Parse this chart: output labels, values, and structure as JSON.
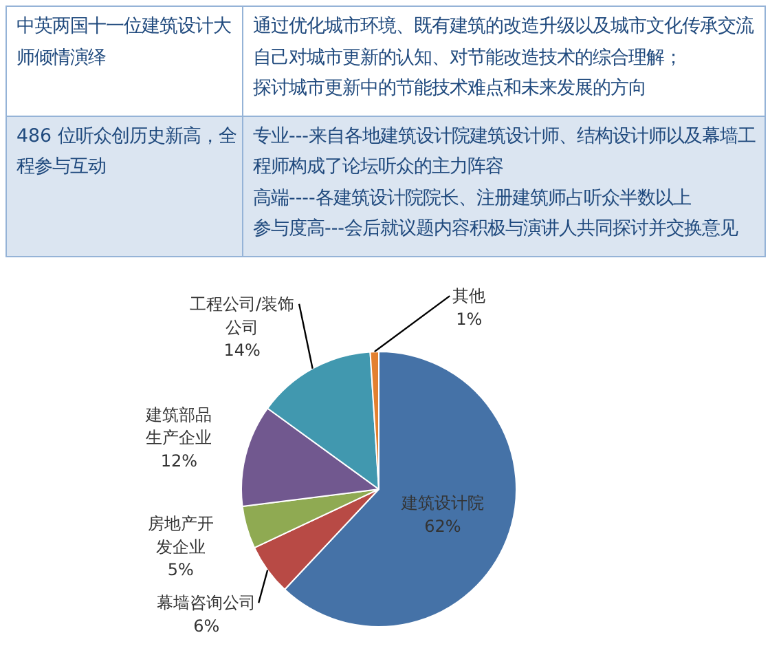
{
  "chart_data": {
    "type": "pie",
    "categories": [
      "建筑设计院",
      "幕墙咨询公司",
      "房地产开发企业",
      "建筑部品生产企业",
      "工程公司/装饰公司",
      "其他"
    ],
    "values": [
      62,
      6,
      5,
      12,
      14,
      1
    ],
    "colors": [
      "#4572a7",
      "#b84a45",
      "#8faa52",
      "#71588f",
      "#4198af",
      "#e3802f"
    ],
    "value_labels": [
      "62%",
      "6%",
      "5%",
      "12%",
      "14%",
      "1%"
    ],
    "annotations": [
      "中英两国十一位建筑设计大师倾情演绎",
      "通过优化城市环境、既有建筑的改造升级以及城市文化传承交流自己对城市更新的认知、对节能改造技术的综合理解；",
      "探讨城市更新中的节能技术难点和未来发展的方向",
      "486 位听众创历史新高，全程参与互动",
      "专业---来自各地建筑设计院建筑设计师、结构设计师以及幕墙工程师构成了论坛听众的主力阵容",
      "高端----各建筑设计院院长、注册建筑师占听众半数以上",
      "参与度高---会后就议题内容积极与演讲人共同探讨并交换意见"
    ]
  }
}
